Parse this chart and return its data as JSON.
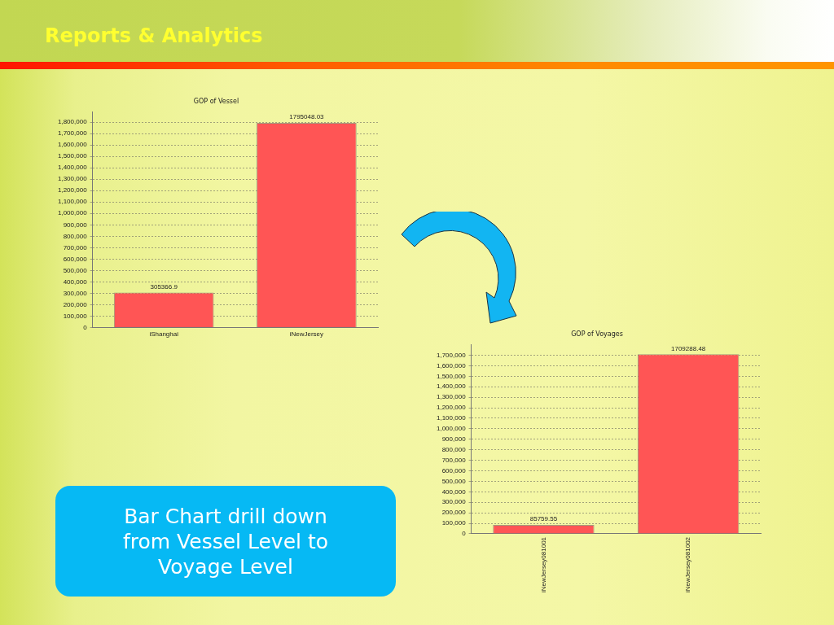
{
  "chart_data": [
    {
      "type": "other",
      "title": "Reports & Analytics"
    },
    {
      "type": "bar",
      "title": "GOP of Vessel",
      "categories": [
        "iShanghai",
        "iNewJersey"
      ],
      "values": [
        305366.9,
        1795048.03
      ],
      "color": "#ff5555",
      "ylim": [
        0,
        1890000
      ],
      "yticks": [
        0,
        {
          "value": 100000,
          "label": "100,000"
        },
        {
          "value": 200000,
          "label": "200,000"
        },
        {
          "value": 300000,
          "label": "300,000"
        },
        {
          "value": 400000,
          "label": "400,000"
        },
        {
          "value": 500000,
          "label": "500,000"
        },
        {
          "value": 600000,
          "label": "600,000"
        },
        {
          "value": 700000,
          "label": "700,000"
        },
        {
          "value": 800000,
          "label": "800,000"
        },
        {
          "value": 900000,
          "label": "900,000"
        },
        {
          "value": 1000000,
          "label": "1,000,000"
        },
        {
          "value": 1100000,
          "label": "1,100,000"
        },
        {
          "value": 1200000,
          "label": "1,200,000"
        },
        {
          "value": 1300000,
          "label": "1,300,000"
        },
        {
          "value": 1400000,
          "label": "1,400,000"
        },
        {
          "value": 1500000,
          "label": "1,500,000"
        },
        {
          "value": 1600000,
          "label": "1,600,000"
        },
        {
          "value": 1700000,
          "label": "1,700,000"
        },
        {
          "value": 1800000,
          "label": "1,800,000"
        }
      ],
      "grid": "y",
      "data_labels": true
    },
    {
      "type": "bar",
      "title": "GOP of Voyages",
      "categories": [
        "iNewJersey081001",
        "iNewJersey081002"
      ],
      "values": [
        85759.55,
        1709288.48
      ],
      "color": "#ff5555",
      "ylim": [
        0,
        1800000
      ],
      "yticks": [
        0,
        {
          "value": 100000,
          "label": "100,000"
        },
        {
          "value": 200000,
          "label": "200,000"
        },
        {
          "value": 300000,
          "label": "300,000"
        },
        {
          "value": 400000,
          "label": "400,000"
        },
        {
          "value": 500000,
          "label": "500,000"
        },
        {
          "value": 600000,
          "label": "600,000"
        },
        {
          "value": 700000,
          "label": "700,000"
        },
        {
          "value": 800000,
          "label": "800,000"
        },
        {
          "value": 900000,
          "label": "900,000"
        },
        {
          "value": 1000000,
          "label": "1,000,000"
        },
        {
          "value": 1100000,
          "label": "1,100,000"
        },
        {
          "value": 1200000,
          "label": "1,200,000"
        },
        {
          "value": 1300000,
          "label": "1,300,000"
        },
        {
          "value": 1400000,
          "label": "1,400,000"
        },
        {
          "value": 1500000,
          "label": "1,500,000"
        },
        {
          "value": 1600000,
          "label": "1,600,000"
        },
        {
          "value": 1700000,
          "label": "1,700,000"
        }
      ],
      "grid": "y",
      "data_labels": true
    },
    {
      "type": "other",
      "annotations": [
        "Bar Chart drill down from Vessel Level to Voyage Level"
      ]
    }
  ]
}
